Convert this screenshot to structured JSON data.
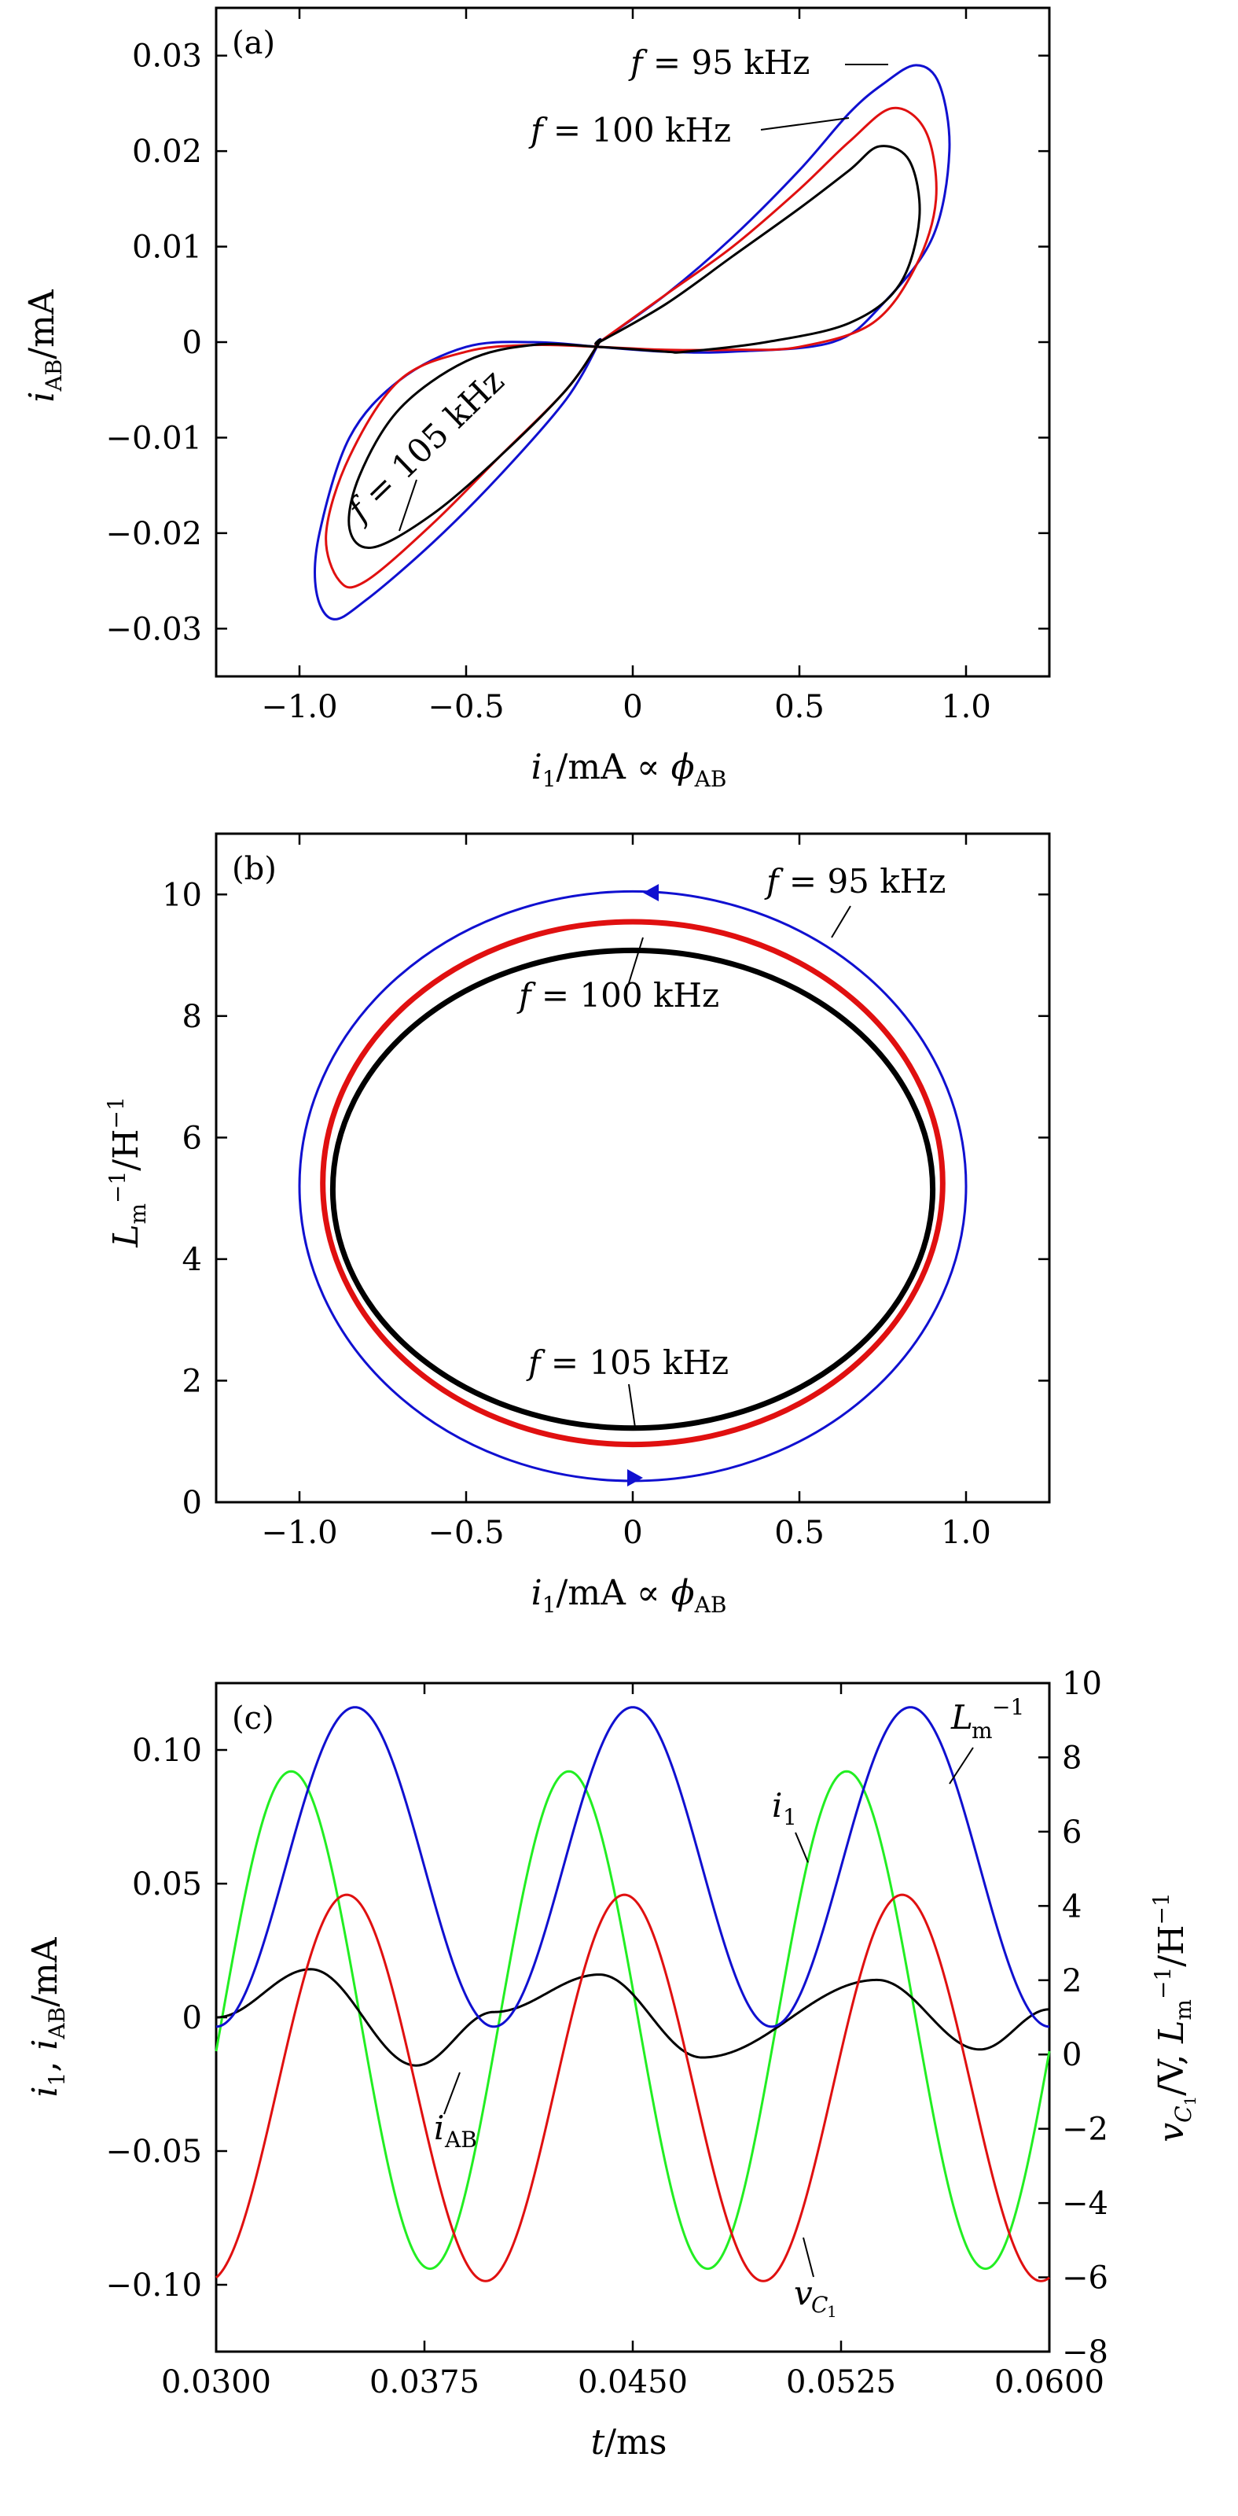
{
  "chart_data": [
    {
      "type": "line",
      "panel_label": "(a)",
      "xlabel": "i1/mA ∝ φAB",
      "ylabel": "iAB/mA",
      "xlim": [
        -1.25,
        1.25
      ],
      "ylim": [
        -0.035,
        0.035
      ],
      "x_ticks": [
        "−1.0",
        "−0.5",
        "0",
        "0.5",
        "1.0"
      ],
      "y_ticks": [
        "−0.03",
        "−0.02",
        "−0.01",
        "0",
        "0.01",
        "0.02",
        "0.03"
      ],
      "series": [
        {
          "name": "f = 95 kHz",
          "color": "#1010d0",
          "x": [
            -0.1,
            0.1,
            0.3,
            0.5,
            0.65,
            0.75,
            0.85,
            0.92,
            0.95,
            0.9,
            0.75,
            0.6,
            0.3,
            0.1,
            -0.1,
            -0.3,
            -0.5,
            -0.7,
            -0.85,
            -0.94,
            -0.95,
            -0.9,
            -0.8,
            -0.6,
            -0.4,
            -0.2,
            -0.1
          ],
          "y": [
            0.0,
            0.005,
            0.011,
            0.018,
            0.024,
            0.027,
            0.029,
            0.027,
            0.02,
            0.011,
            0.004,
            0.0,
            -0.001,
            -0.001,
            -0.0005,
            0.0,
            -0.0005,
            -0.004,
            -0.01,
            -0.02,
            -0.026,
            -0.029,
            -0.027,
            -0.021,
            -0.014,
            -0.006,
            0.0
          ]
        },
        {
          "name": "f = 100 kHz",
          "color": "#e01010",
          "x": [
            -0.1,
            0.1,
            0.3,
            0.5,
            0.65,
            0.78,
            0.88,
            0.91,
            0.85,
            0.72,
            0.5,
            0.3,
            0.1,
            -0.1,
            -0.3,
            -0.5,
            -0.7,
            -0.85,
            -0.92,
            -0.88,
            -0.8,
            -0.6,
            -0.4,
            -0.2,
            -0.1
          ],
          "y": [
            0.0,
            0.005,
            0.01,
            0.016,
            0.021,
            0.0245,
            0.022,
            0.015,
            0.008,
            0.002,
            -0.0005,
            -0.0008,
            -0.0008,
            -0.0005,
            -0.0003,
            -0.001,
            -0.004,
            -0.012,
            -0.02,
            -0.025,
            -0.025,
            -0.019,
            -0.012,
            -0.005,
            0.0
          ]
        },
        {
          "name": "f = 105 kHz",
          "color": "#000000",
          "x": [
            -0.1,
            0.1,
            0.3,
            0.5,
            0.65,
            0.74,
            0.83,
            0.86,
            0.8,
            0.65,
            0.4,
            0.16,
            0.1,
            -0.1,
            -0.3,
            -0.5,
            -0.7,
            -0.82,
            -0.85,
            -0.78,
            -0.6,
            -0.4,
            -0.2,
            -0.1
          ],
          "y": [
            0.0,
            0.004,
            0.009,
            0.014,
            0.018,
            0.0205,
            0.019,
            0.013,
            0.006,
            0.002,
            0.0,
            -0.001,
            -0.001,
            -0.0005,
            -0.0003,
            -0.002,
            -0.007,
            -0.014,
            -0.0195,
            -0.0215,
            -0.018,
            -0.012,
            -0.005,
            0.0
          ]
        }
      ]
    },
    {
      "type": "line",
      "panel_label": "(b)",
      "xlabel": "i1/mA ∝ φAB",
      "ylabel": "Lm⁻¹/H⁻¹",
      "xlim": [
        -1.25,
        1.25
      ],
      "ylim": [
        0,
        11
      ],
      "x_ticks": [
        "−1.0",
        "−0.5",
        "0",
        "0.5",
        "1.0"
      ],
      "y_ticks": [
        "0",
        "2",
        "4",
        "6",
        "8",
        "10"
      ],
      "series": [
        {
          "name": "f = 95 kHz",
          "color": "#1010d0",
          "center_y": 5.2,
          "x_amplitude": 1.0,
          "y_amplitude": 4.85
        },
        {
          "name": "f = 100 kHz",
          "color": "#e01010",
          "center_y": 5.25,
          "x_amplitude": 0.93,
          "y_amplitude": 4.3
        },
        {
          "name": "f = 105 kHz",
          "color": "#000000",
          "center_y": 5.15,
          "x_amplitude": 0.9,
          "y_amplitude": 3.93
        }
      ]
    },
    {
      "type": "line",
      "panel_label": "(c)",
      "xlabel": "t/ms",
      "ylabel_left": "i1, iAB/mA",
      "ylabel_right": "vC1/V, Lm⁻¹/H⁻¹",
      "xlim": [
        0.03,
        0.06
      ],
      "ylim_left": [
        -0.125,
        0.125
      ],
      "ylim_right": [
        -8,
        10
      ],
      "x_ticks": [
        "0.0300",
        "0.0375",
        "0.0450",
        "0.0525",
        "0.0600"
      ],
      "y_ticks_left": [
        "−0.10",
        "−0.05",
        "0",
        "0.05",
        "0.10"
      ],
      "y_ticks_right": [
        "−8",
        "−6",
        "−4",
        "−2",
        "0",
        "2",
        "4",
        "6",
        "8",
        "10"
      ],
      "series": [
        {
          "name": "i1",
          "axis": "left",
          "color": "#22ee22",
          "amplitude": 0.093,
          "offset": -0.001,
          "period": 0.01,
          "peak_t": 0.0327
        },
        {
          "name": "iAB",
          "axis": "left",
          "color": "#000000",
          "peaks_t": [
            0.0334,
            0.0372,
            0.04,
            0.0438,
            0.0475,
            0.0538,
            0.0575
          ],
          "peaks_v": [
            0.018,
            -0.018,
            0.002,
            0.016,
            -0.015,
            0.014,
            -0.012
          ]
        },
        {
          "name": "vC1",
          "axis": "right",
          "color": "#e01010",
          "amplitude": 5.2,
          "offset": -0.9,
          "period": 0.01,
          "peak_t": 0.0347
        },
        {
          "name": "Lm⁻¹",
          "axis": "right",
          "color": "#1010d0",
          "amplitude": 4.3,
          "offset": 5.05,
          "period": 0.01,
          "peak_t": 0.035
        }
      ]
    }
  ]
}
